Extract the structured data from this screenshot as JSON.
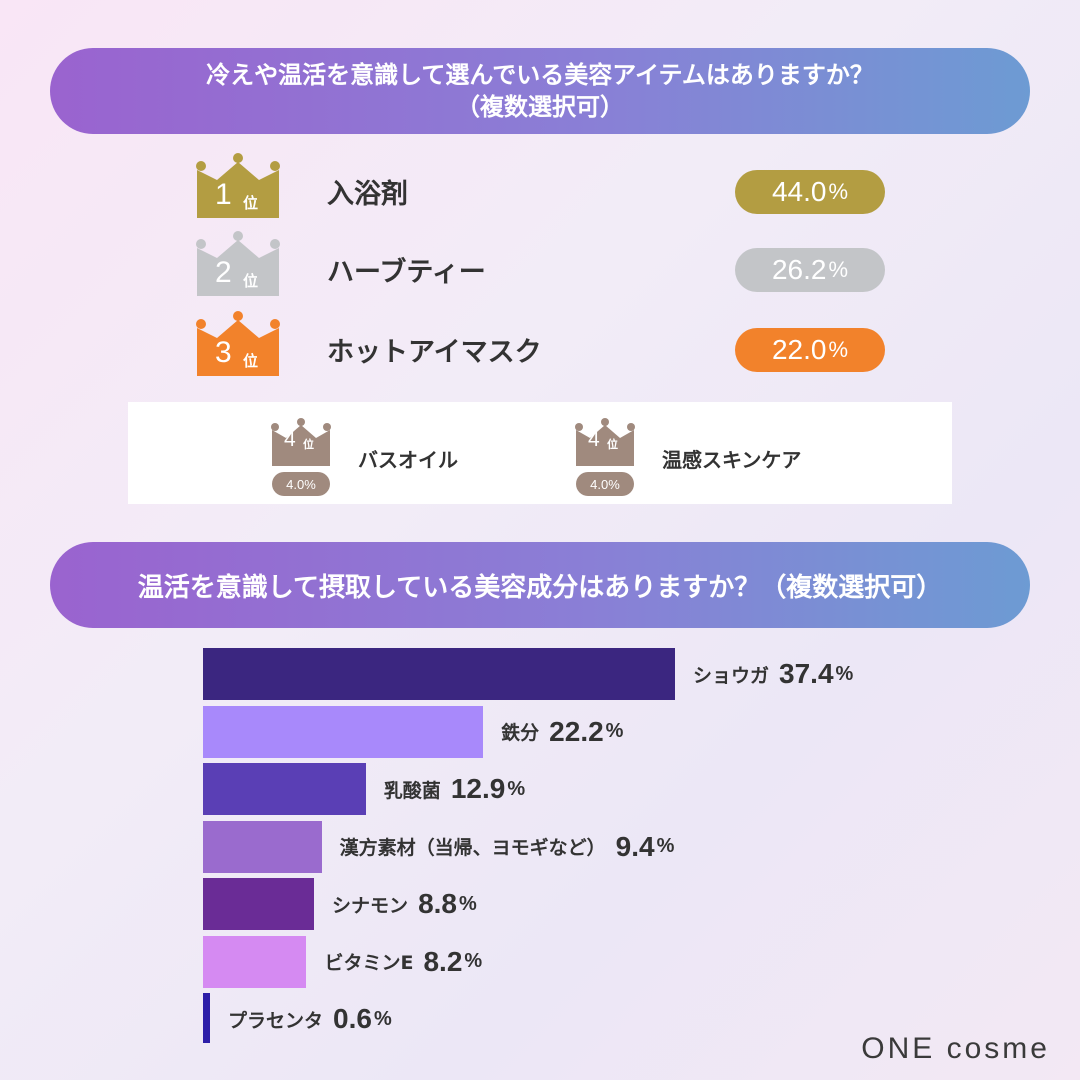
{
  "question1": {
    "line1": "冷えや温活を意識して選んでいる美容アイテムはありますか？",
    "line2": "（複数選択可）"
  },
  "ranking": [
    {
      "rank": "1",
      "rank_suffix": "位",
      "label": "入浴剤",
      "value": "44.0",
      "unit": "%",
      "color": "#b39d42"
    },
    {
      "rank": "2",
      "rank_suffix": "位",
      "label": "ハーブティー",
      "value": "26.2",
      "unit": "%",
      "color": "#c3c5c8"
    },
    {
      "rank": "3",
      "rank_suffix": "位",
      "label": "ホットアイマスク",
      "value": "22.0",
      "unit": "%",
      "color": "#f2822b"
    }
  ],
  "fourth": [
    {
      "rank": "4",
      "rank_suffix": "位",
      "label": "バスオイル",
      "value": "4.0%",
      "color": "#a08a7e"
    },
    {
      "rank": "4",
      "rank_suffix": "位",
      "label": "温感スキンケア",
      "value": "4.0%",
      "color": "#a08a7e"
    }
  ],
  "question2": {
    "text": "温活を意識して摂取している美容成分はありますか？（複数選択可）"
  },
  "chart_data": {
    "type": "bar",
    "orientation": "horizontal",
    "title": "温活を意識して摂取している美容成分はありますか？（複数選択可）",
    "unit": "%",
    "categories": [
      "ショウガ",
      "鉄分",
      "乳酸菌",
      "漢方素材（当帰、ヨモギなど）",
      "シナモン",
      "ビタミンE",
      "プラセンタ"
    ],
    "values": [
      37.4,
      22.2,
      12.9,
      9.4,
      8.8,
      8.2,
      0.6
    ],
    "value_labels": [
      "37.4",
      "22.2",
      "12.9",
      "9.4",
      "8.8",
      "8.2",
      "0.6"
    ],
    "colors": [
      "#3b2680",
      "#a889fb",
      "#5a3fb5",
      "#9a6bce",
      "#6a2c96",
      "#d58af2",
      "#2d1ea8"
    ],
    "xlim": [
      0,
      37.4
    ],
    "grid": false,
    "legend": "none"
  },
  "brand": {
    "logo": "ONE cosme"
  }
}
